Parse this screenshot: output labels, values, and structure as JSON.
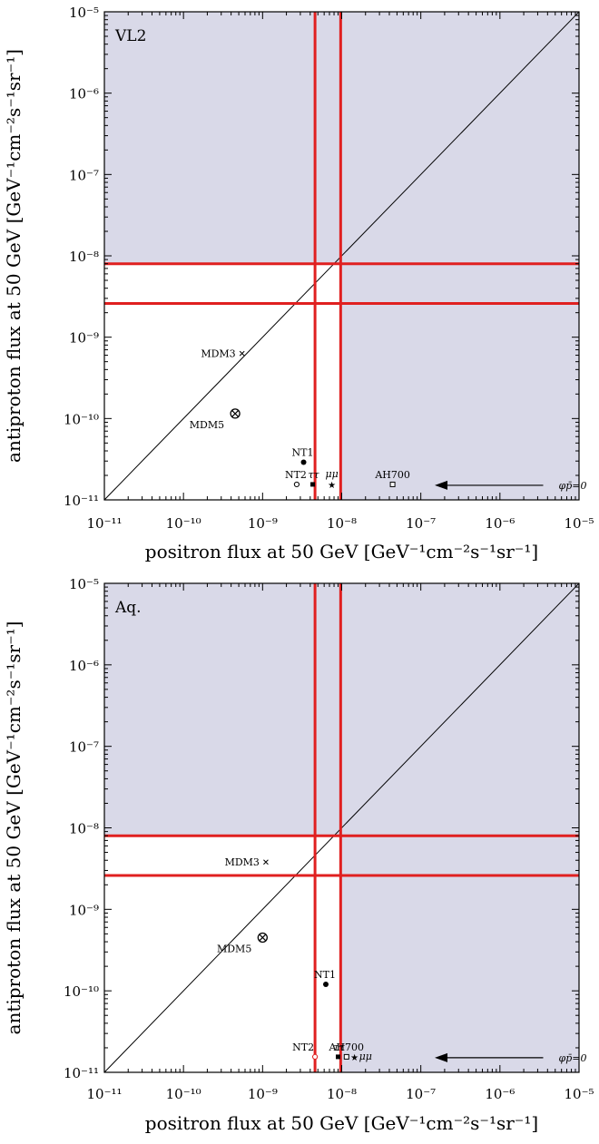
{
  "chart_data": [
    {
      "type": "scatter",
      "panel_label": "VL2",
      "xlabel": "positron flux at 50 GeV [GeV⁻¹cm⁻²s⁻¹sr⁻¹]",
      "ylabel": "antiproton flux at 50 GeV [GeV⁻¹cm⁻²s⁻¹sr⁻¹]",
      "x_scale": "log",
      "y_scale": "log",
      "xlim": [
        1e-11,
        1e-05
      ],
      "ylim": [
        1e-11,
        1e-05
      ],
      "x_ticks": [
        "10⁻¹¹",
        "10⁻¹⁰",
        "10⁻⁹",
        "10⁻⁸",
        "10⁻⁷",
        "10⁻⁶",
        "10⁻⁵"
      ],
      "y_ticks": [
        "10⁻¹¹",
        "10⁻¹⁰",
        "10⁻⁹",
        "10⁻⁸",
        "10⁻⁷",
        "10⁻⁶",
        "10⁻⁵"
      ],
      "shaded_color": "#d9d9e8",
      "line_color": "#e02020",
      "vertical_lines_x": [
        4.6e-09,
        9.7e-09
      ],
      "horizontal_lines_y": [
        8e-09,
        2.6e-09
      ],
      "diagonal": "y = x",
      "annotation": {
        "text": "φp̄=0",
        "x": 7e-06,
        "y": 1.55e-11,
        "arrow_to_x": 1.5e-07
      },
      "points": [
        {
          "label": "MDM3",
          "x": 5.5e-10,
          "y": 6.3e-10,
          "marker": "x"
        },
        {
          "label": "MDM5",
          "x": 4.5e-10,
          "y": 1.15e-10,
          "marker": "otimes"
        },
        {
          "label": "NT1",
          "x": 3.3e-09,
          "y": 2.9e-11,
          "marker": "filled-circle"
        },
        {
          "label": "NT2",
          "x": 2.7e-09,
          "y": 1.55e-11,
          "marker": "open-circle"
        },
        {
          "label": "ττ",
          "x": 4.3e-09,
          "y": 1.55e-11,
          "marker": "filled-square"
        },
        {
          "label": "μμ",
          "x": 7.5e-09,
          "y": 1.55e-11,
          "marker": "star"
        },
        {
          "label": "AH700",
          "x": 4.4e-08,
          "y": 1.55e-11,
          "marker": "open-square"
        }
      ]
    },
    {
      "type": "scatter",
      "panel_label": "Aq.",
      "xlabel": "positron flux at 50 GeV [GeV⁻¹cm⁻²s⁻¹sr⁻¹]",
      "ylabel": "antiproton flux at 50 GeV [GeV⁻¹cm⁻²s⁻¹sr⁻¹]",
      "x_scale": "log",
      "y_scale": "log",
      "xlim": [
        1e-11,
        1e-05
      ],
      "ylim": [
        1e-11,
        1e-05
      ],
      "x_ticks": [
        "10⁻¹¹",
        "10⁻¹⁰",
        "10⁻⁹",
        "10⁻⁸",
        "10⁻⁷",
        "10⁻⁶",
        "10⁻⁵"
      ],
      "y_ticks": [
        "10⁻¹¹",
        "10⁻¹⁰",
        "10⁻⁹",
        "10⁻⁸",
        "10⁻⁷",
        "10⁻⁶",
        "10⁻⁵"
      ],
      "shaded_color": "#d9d9e8",
      "line_color": "#e02020",
      "vertical_lines_x": [
        4.6e-09,
        9.7e-09
      ],
      "horizontal_lines_y": [
        8e-09,
        2.6e-09
      ],
      "diagonal": "y = x",
      "annotation": {
        "text": "φp̄=0",
        "x": 7e-06,
        "y": 1.55e-11,
        "arrow_to_x": 1.5e-07
      },
      "points": [
        {
          "label": "MDM3",
          "x": 1.1e-09,
          "y": 3.8e-09,
          "marker": "x"
        },
        {
          "label": "MDM5",
          "x": 1e-09,
          "y": 4.5e-10,
          "marker": "otimes"
        },
        {
          "label": "NT1",
          "x": 6.3e-09,
          "y": 1.2e-10,
          "marker": "filled-circle"
        },
        {
          "label": "NT2",
          "x": 4.6e-09,
          "y": 1.55e-11,
          "marker": "open-circle"
        },
        {
          "label": "ττ",
          "x": 9e-09,
          "y": 1.55e-11,
          "marker": "filled-square"
        },
        {
          "label": "μμ",
          "x": 1.45e-08,
          "y": 1.55e-11,
          "marker": "star"
        },
        {
          "label": "AH700",
          "x": 1.15e-08,
          "y": 1.55e-11,
          "marker": "open-square"
        }
      ]
    }
  ]
}
